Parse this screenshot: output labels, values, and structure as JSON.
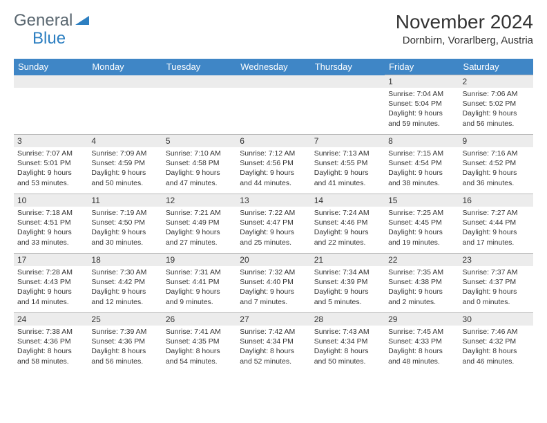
{
  "logo": {
    "word1": "General",
    "word2": "Blue"
  },
  "title": "November 2024",
  "location": "Dornbirn, Vorarlberg, Austria",
  "colors": {
    "header_bg": "#3f86c6",
    "header_text": "#ffffff",
    "daynum_bg": "#ececec",
    "border": "#b8b8b8",
    "text": "#333333",
    "logo_gray": "#5a6770",
    "logo_blue": "#2d7fc1",
    "background": "#ffffff"
  },
  "daysOfWeek": [
    "Sunday",
    "Monday",
    "Tuesday",
    "Wednesday",
    "Thursday",
    "Friday",
    "Saturday"
  ],
  "weeks": [
    [
      null,
      null,
      null,
      null,
      null,
      {
        "n": "1",
        "sr": "7:04 AM",
        "ss": "5:04 PM",
        "dl": "9 hours and 59 minutes."
      },
      {
        "n": "2",
        "sr": "7:06 AM",
        "ss": "5:02 PM",
        "dl": "9 hours and 56 minutes."
      }
    ],
    [
      {
        "n": "3",
        "sr": "7:07 AM",
        "ss": "5:01 PM",
        "dl": "9 hours and 53 minutes."
      },
      {
        "n": "4",
        "sr": "7:09 AM",
        "ss": "4:59 PM",
        "dl": "9 hours and 50 minutes."
      },
      {
        "n": "5",
        "sr": "7:10 AM",
        "ss": "4:58 PM",
        "dl": "9 hours and 47 minutes."
      },
      {
        "n": "6",
        "sr": "7:12 AM",
        "ss": "4:56 PM",
        "dl": "9 hours and 44 minutes."
      },
      {
        "n": "7",
        "sr": "7:13 AM",
        "ss": "4:55 PM",
        "dl": "9 hours and 41 minutes."
      },
      {
        "n": "8",
        "sr": "7:15 AM",
        "ss": "4:54 PM",
        "dl": "9 hours and 38 minutes."
      },
      {
        "n": "9",
        "sr": "7:16 AM",
        "ss": "4:52 PM",
        "dl": "9 hours and 36 minutes."
      }
    ],
    [
      {
        "n": "10",
        "sr": "7:18 AM",
        "ss": "4:51 PM",
        "dl": "9 hours and 33 minutes."
      },
      {
        "n": "11",
        "sr": "7:19 AM",
        "ss": "4:50 PM",
        "dl": "9 hours and 30 minutes."
      },
      {
        "n": "12",
        "sr": "7:21 AM",
        "ss": "4:49 PM",
        "dl": "9 hours and 27 minutes."
      },
      {
        "n": "13",
        "sr": "7:22 AM",
        "ss": "4:47 PM",
        "dl": "9 hours and 25 minutes."
      },
      {
        "n": "14",
        "sr": "7:24 AM",
        "ss": "4:46 PM",
        "dl": "9 hours and 22 minutes."
      },
      {
        "n": "15",
        "sr": "7:25 AM",
        "ss": "4:45 PM",
        "dl": "9 hours and 19 minutes."
      },
      {
        "n": "16",
        "sr": "7:27 AM",
        "ss": "4:44 PM",
        "dl": "9 hours and 17 minutes."
      }
    ],
    [
      {
        "n": "17",
        "sr": "7:28 AM",
        "ss": "4:43 PM",
        "dl": "9 hours and 14 minutes."
      },
      {
        "n": "18",
        "sr": "7:30 AM",
        "ss": "4:42 PM",
        "dl": "9 hours and 12 minutes."
      },
      {
        "n": "19",
        "sr": "7:31 AM",
        "ss": "4:41 PM",
        "dl": "9 hours and 9 minutes."
      },
      {
        "n": "20",
        "sr": "7:32 AM",
        "ss": "4:40 PM",
        "dl": "9 hours and 7 minutes."
      },
      {
        "n": "21",
        "sr": "7:34 AM",
        "ss": "4:39 PM",
        "dl": "9 hours and 5 minutes."
      },
      {
        "n": "22",
        "sr": "7:35 AM",
        "ss": "4:38 PM",
        "dl": "9 hours and 2 minutes."
      },
      {
        "n": "23",
        "sr": "7:37 AM",
        "ss": "4:37 PM",
        "dl": "9 hours and 0 minutes."
      }
    ],
    [
      {
        "n": "24",
        "sr": "7:38 AM",
        "ss": "4:36 PM",
        "dl": "8 hours and 58 minutes."
      },
      {
        "n": "25",
        "sr": "7:39 AM",
        "ss": "4:36 PM",
        "dl": "8 hours and 56 minutes."
      },
      {
        "n": "26",
        "sr": "7:41 AM",
        "ss": "4:35 PM",
        "dl": "8 hours and 54 minutes."
      },
      {
        "n": "27",
        "sr": "7:42 AM",
        "ss": "4:34 PM",
        "dl": "8 hours and 52 minutes."
      },
      {
        "n": "28",
        "sr": "7:43 AM",
        "ss": "4:34 PM",
        "dl": "8 hours and 50 minutes."
      },
      {
        "n": "29",
        "sr": "7:45 AM",
        "ss": "4:33 PM",
        "dl": "8 hours and 48 minutes."
      },
      {
        "n": "30",
        "sr": "7:46 AM",
        "ss": "4:32 PM",
        "dl": "8 hours and 46 minutes."
      }
    ]
  ]
}
